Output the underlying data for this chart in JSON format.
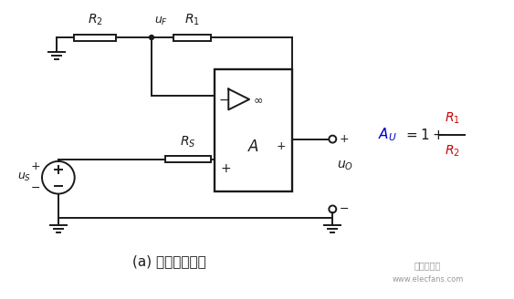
{
  "background_color": "#ffffff",
  "title": "(a) 同相比例放大",
  "title_fontsize": 11,
  "watermark": "电子发烧网",
  "watermark_url": "www.elecfans.com",
  "line_color": "#1a1a1a",
  "formula_color_AU": "#0000cc",
  "formula_color_R": "#cc0000"
}
